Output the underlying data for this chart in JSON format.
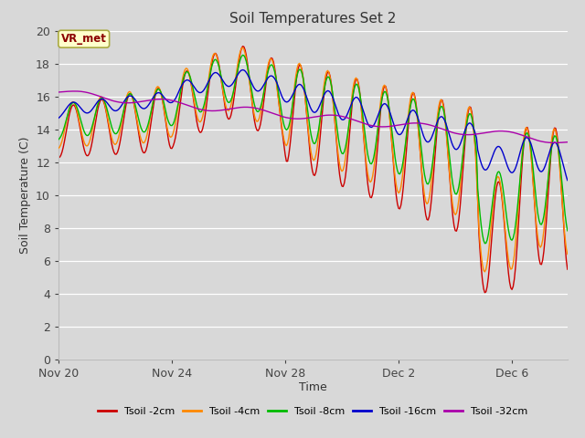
{
  "title": "Soil Temperatures Set 2",
  "xlabel": "Time",
  "ylabel": "Soil Temperature (C)",
  "ylim": [
    0,
    20
  ],
  "yticks": [
    0,
    2,
    4,
    6,
    8,
    10,
    12,
    14,
    16,
    18,
    20
  ],
  "background_color": "#d8d8d8",
  "plot_bg_color": "#d8d8d8",
  "legend_labels": [
    "Tsoil -2cm",
    "Tsoil -4cm",
    "Tsoil -8cm",
    "Tsoil -16cm",
    "Tsoil -32cm"
  ],
  "line_colors": [
    "#cc0000",
    "#ff8800",
    "#00bb00",
    "#0000cc",
    "#aa00aa"
  ],
  "annotation_text": "VR_met",
  "annotation_box_color": "#ffffcc",
  "annotation_box_edge": "#aaaa44",
  "x_tick_labels": [
    "Nov 20",
    "Nov 24",
    "Nov 28",
    "Dec 2",
    "Dec 6"
  ],
  "x_tick_positions": [
    0,
    96,
    192,
    288,
    384
  ],
  "total_points": 432
}
